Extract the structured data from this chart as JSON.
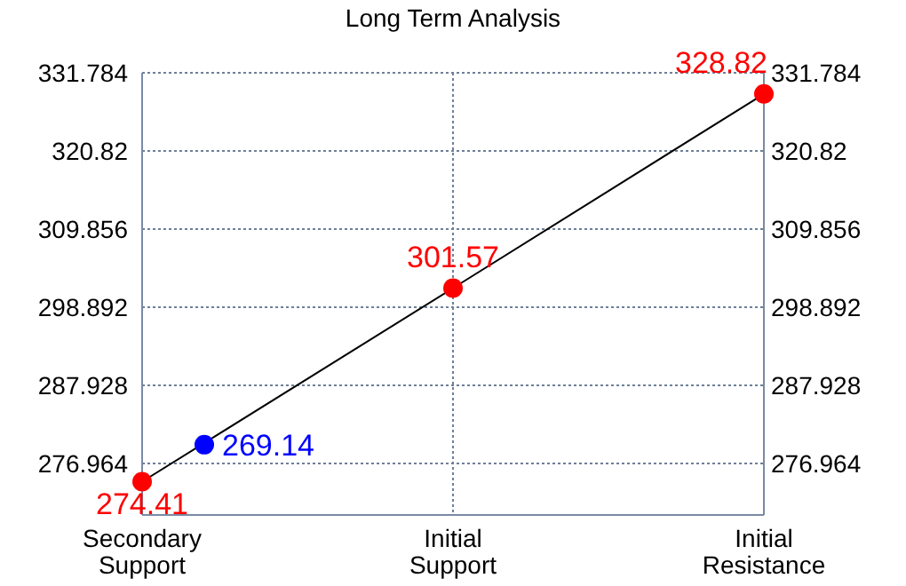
{
  "chart_data": {
    "type": "line",
    "title": "Long Term Analysis",
    "categories": [
      "Secondary\nSupport",
      null,
      null,
      null,
      null,
      "Initial\nSupport",
      null,
      null,
      null,
      null,
      "Initial\nResistance"
    ],
    "ylim": [
      269.74,
      331.784
    ],
    "yticks": [
      276.964,
      287.928,
      298.892,
      309.856,
      320.82,
      331.784
    ],
    "y2lim": [
      269.74,
      331.784
    ],
    "y2ticks": [
      276.964,
      287.928,
      298.892,
      309.856,
      320.82,
      331.784
    ],
    "grid": true,
    "series": [
      {
        "color": "#000000",
        "x": [
          "Secondary\nSupport",
          "Initial\nSupport",
          "Initial\nResistance"
        ],
        "values": [
          274.41,
          301.57,
          328.82
        ],
        "marker": "none"
      },
      {
        "type": "scatter",
        "color": "#ff0000",
        "x": [
          "Secondary\nSupport",
          "Initial\nSupport",
          "Initial\nResistance"
        ],
        "values": [
          274.41,
          301.57,
          328.82
        ],
        "marker": "circle",
        "value_labels": [
          "274.41",
          "301.57",
          "328.82"
        ]
      },
      {
        "type": "scatter",
        "color": "#0000ff",
        "values": [
          null,
          279.6,
          null,
          null,
          null,
          null,
          null,
          null,
          null,
          null,
          null
        ],
        "marker": "circle"
      }
    ],
    "annotations": [
      "269.14"
    ]
  }
}
